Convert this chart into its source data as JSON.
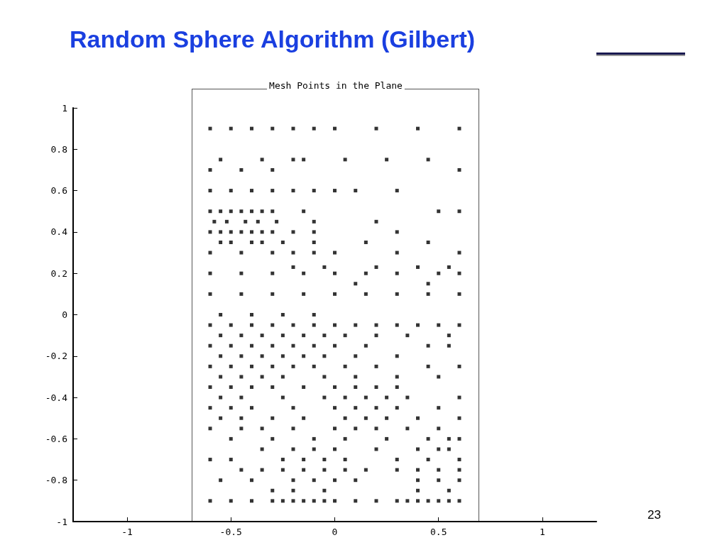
{
  "chart_data": {
    "type": "scatter",
    "title": "Random Sphere Algorithm (Gilbert)",
    "subtitle": "Mesh Points in the Plane",
    "annotations": [
      "23"
    ],
    "marker": "square",
    "grid": false,
    "xlim": [
      -1.26,
      1.26
    ],
    "xticks": [
      -1,
      -0.5,
      0,
      0.5,
      1
    ],
    "ylim": [
      -1,
      1
    ],
    "yticks": [
      -1,
      -0.8,
      -0.6,
      -0.4,
      -0.2,
      0,
      0.2,
      0.4,
      0.6,
      0.8,
      1
    ],
    "series": [
      {
        "color": "#000000",
        "x": [
          -0.6,
          -0.5,
          -0.4,
          -0.3,
          -0.2,
          -0.1,
          0,
          0.2,
          0.4,
          0.6,
          -0.55,
          -0.35,
          -0.2,
          -0.15,
          0.05,
          0.25,
          0.45,
          -0.6,
          -0.45,
          -0.3,
          0.6,
          -0.6,
          -0.5,
          -0.4,
          -0.3,
          -0.2,
          -0.1,
          0,
          0.1,
          0.3,
          -0.6,
          -0.55,
          -0.5,
          -0.45,
          -0.4,
          -0.35,
          -0.3,
          -0.15,
          0.5,
          0.6,
          -0.58,
          -0.52,
          -0.43,
          -0.37,
          -0.28,
          -0.1,
          0.2,
          -0.6,
          -0.55,
          -0.5,
          -0.45,
          -0.4,
          -0.35,
          -0.3,
          -0.2,
          -0.1,
          0.3,
          -0.55,
          -0.5,
          -0.4,
          -0.35,
          -0.25,
          -0.1,
          0.15,
          0.45,
          -0.6,
          -0.45,
          -0.3,
          -0.2,
          -0.1,
          0,
          0.3,
          0.6,
          -0.6,
          -0.45,
          -0.3,
          -0.15,
          0,
          0.15,
          0.3,
          0.5,
          0.6,
          -0.2,
          -0.05,
          0.2,
          0.4,
          0.55,
          -0.6,
          -0.45,
          -0.3,
          -0.15,
          0,
          0.15,
          0.3,
          0.45,
          0.6,
          0.1,
          0.45,
          -0.55,
          -0.4,
          -0.25,
          -0.1,
          -0.6,
          -0.5,
          -0.4,
          -0.3,
          -0.2,
          -0.1,
          0,
          0.1,
          0.2,
          0.3,
          0.4,
          0.5,
          0.6,
          -0.55,
          -0.45,
          -0.35,
          -0.25,
          -0.15,
          -0.05,
          0.05,
          0.2,
          0.35,
          0.55,
          -0.6,
          -0.5,
          -0.4,
          -0.3,
          -0.2,
          -0.1,
          0,
          0.15,
          0.45,
          0.55,
          -0.55,
          -0.45,
          -0.35,
          -0.25,
          -0.15,
          -0.05,
          0.1,
          0.3,
          -0.6,
          -0.5,
          -0.4,
          -0.3,
          -0.2,
          -0.1,
          0.05,
          0.2,
          0.45,
          0.6,
          -0.55,
          -0.45,
          -0.35,
          -0.25,
          -0.05,
          0.1,
          0.3,
          0.5,
          -0.6,
          -0.5,
          -0.4,
          -0.3,
          -0.15,
          0,
          0.1,
          0.2,
          0.3,
          -0.55,
          -0.45,
          -0.25,
          -0.05,
          0.05,
          0.15,
          0.25,
          0.35,
          0.6,
          -0.6,
          -0.5,
          -0.4,
          -0.2,
          0,
          0.1,
          0.2,
          0.3,
          0.5,
          -0.55,
          -0.45,
          -0.3,
          -0.15,
          0.05,
          0.15,
          0.25,
          0.4,
          0.6,
          -0.6,
          -0.45,
          -0.35,
          -0.2,
          0,
          0.1,
          0.2,
          0.35,
          0.5,
          -0.5,
          -0.3,
          -0.1,
          0.05,
          0.25,
          0.45,
          0.55,
          0.6,
          -0.35,
          -0.2,
          -0.1,
          0,
          0.2,
          0.4,
          0.5,
          0.55,
          -0.6,
          -0.5,
          -0.25,
          -0.15,
          -0.05,
          0.05,
          0.3,
          0.45,
          0.6,
          -0.45,
          -0.35,
          -0.25,
          -0.15,
          -0.05,
          0.05,
          0.15,
          0.3,
          0.4,
          0.5,
          0.6,
          -0.55,
          -0.4,
          -0.2,
          -0.1,
          0,
          0.1,
          0.4,
          0.5,
          0.6,
          -0.3,
          -0.2,
          -0.05,
          0.4,
          0.55,
          -0.6,
          -0.5,
          -0.4,
          -0.3,
          -0.25,
          -0.2,
          -0.15,
          -0.1,
          -0.05,
          0,
          0.1,
          0.2,
          0.3,
          0.35,
          0.4,
          0.45,
          0.5,
          0.55,
          0.6
        ],
        "values": [
          0.9,
          0.9,
          0.9,
          0.9,
          0.9,
          0.9,
          0.9,
          0.9,
          0.9,
          0.9,
          0.75,
          0.75,
          0.75,
          0.75,
          0.75,
          0.75,
          0.75,
          0.7,
          0.7,
          0.7,
          0.7,
          0.6,
          0.6,
          0.6,
          0.6,
          0.6,
          0.6,
          0.6,
          0.6,
          0.6,
          0.5,
          0.5,
          0.5,
          0.5,
          0.5,
          0.5,
          0.5,
          0.5,
          0.5,
          0.5,
          0.45,
          0.45,
          0.45,
          0.45,
          0.45,
          0.45,
          0.45,
          0.4,
          0.4,
          0.4,
          0.4,
          0.4,
          0.4,
          0.4,
          0.4,
          0.4,
          0.4,
          0.35,
          0.35,
          0.35,
          0.35,
          0.35,
          0.35,
          0.35,
          0.35,
          0.3,
          0.3,
          0.3,
          0.3,
          0.3,
          0.3,
          0.3,
          0.3,
          0.2,
          0.2,
          0.2,
          0.2,
          0.2,
          0.2,
          0.2,
          0.2,
          0.2,
          0.23,
          0.23,
          0.23,
          0.23,
          0.23,
          0.1,
          0.1,
          0.1,
          0.1,
          0.1,
          0.1,
          0.1,
          0.1,
          0.1,
          0.15,
          0.15,
          0,
          0,
          0,
          0,
          -0.05,
          -0.05,
          -0.05,
          -0.05,
          -0.05,
          -0.05,
          -0.05,
          -0.05,
          -0.05,
          -0.05,
          -0.05,
          -0.05,
          -0.05,
          -0.1,
          -0.1,
          -0.1,
          -0.1,
          -0.1,
          -0.1,
          -0.1,
          -0.1,
          -0.1,
          -0.1,
          -0.15,
          -0.15,
          -0.15,
          -0.15,
          -0.15,
          -0.15,
          -0.15,
          -0.15,
          -0.15,
          -0.15,
          -0.2,
          -0.2,
          -0.2,
          -0.2,
          -0.2,
          -0.2,
          -0.2,
          -0.2,
          -0.25,
          -0.25,
          -0.25,
          -0.25,
          -0.25,
          -0.25,
          -0.25,
          -0.25,
          -0.25,
          -0.25,
          -0.3,
          -0.3,
          -0.3,
          -0.3,
          -0.3,
          -0.3,
          -0.3,
          -0.3,
          -0.35,
          -0.35,
          -0.35,
          -0.35,
          -0.35,
          -0.35,
          -0.35,
          -0.35,
          -0.35,
          -0.4,
          -0.4,
          -0.4,
          -0.4,
          -0.4,
          -0.4,
          -0.4,
          -0.4,
          -0.4,
          -0.45,
          -0.45,
          -0.45,
          -0.45,
          -0.45,
          -0.45,
          -0.45,
          -0.45,
          -0.45,
          -0.5,
          -0.5,
          -0.5,
          -0.5,
          -0.5,
          -0.5,
          -0.5,
          -0.5,
          -0.5,
          -0.55,
          -0.55,
          -0.55,
          -0.55,
          -0.55,
          -0.55,
          -0.55,
          -0.55,
          -0.55,
          -0.6,
          -0.6,
          -0.6,
          -0.6,
          -0.6,
          -0.6,
          -0.6,
          -0.6,
          -0.65,
          -0.65,
          -0.65,
          -0.65,
          -0.65,
          -0.65,
          -0.65,
          -0.65,
          -0.7,
          -0.7,
          -0.7,
          -0.7,
          -0.7,
          -0.7,
          -0.7,
          -0.7,
          -0.7,
          -0.75,
          -0.75,
          -0.75,
          -0.75,
          -0.75,
          -0.75,
          -0.75,
          -0.75,
          -0.75,
          -0.75,
          -0.75,
          -0.8,
          -0.8,
          -0.8,
          -0.8,
          -0.8,
          -0.8,
          -0.8,
          -0.8,
          -0.8,
          -0.85,
          -0.85,
          -0.85,
          -0.85,
          -0.85,
          -0.9,
          -0.9,
          -0.9,
          -0.9,
          -0.9,
          -0.9,
          -0.9,
          -0.9,
          -0.9,
          -0.9,
          -0.9,
          -0.9,
          -0.9,
          -0.9,
          -0.9,
          -0.9,
          -0.9,
          -0.9,
          -0.9
        ]
      }
    ]
  }
}
